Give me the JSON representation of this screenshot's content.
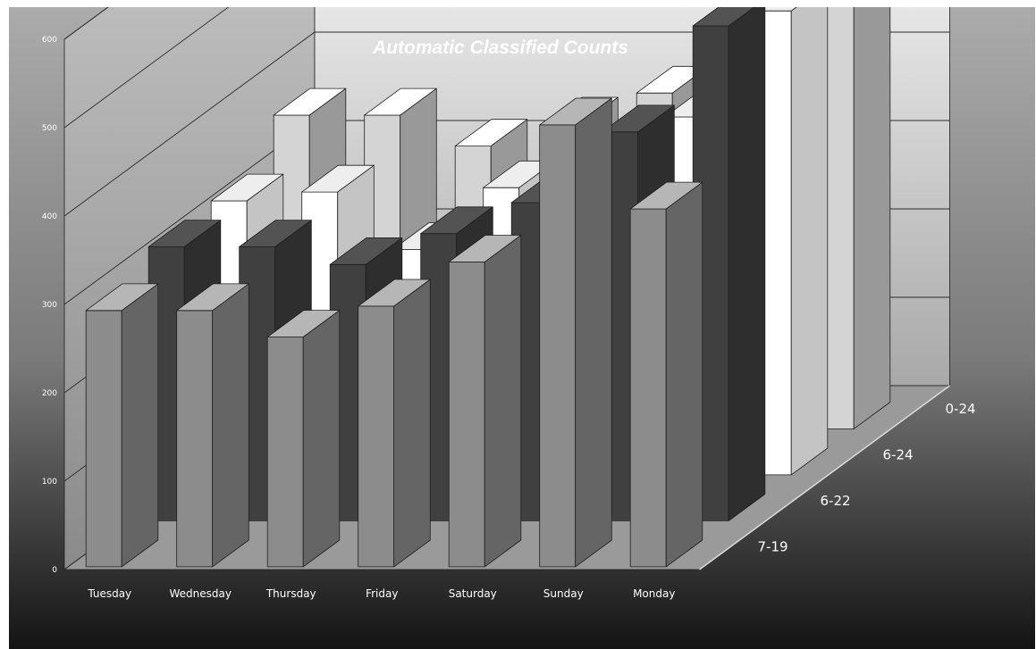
{
  "chart_data": {
    "type": "bar",
    "subtype": "3d-column",
    "title": "Automatic Classified Counts",
    "xlabel": "",
    "ylabel": "",
    "ylim": [
      0,
      600
    ],
    "yticks": [
      "0",
      "100",
      "200",
      "300",
      "400",
      "500",
      "600"
    ],
    "categories": [
      "Tuesday",
      "Wednesday",
      "Thursday",
      "Friday",
      "Saturday",
      "Sunday",
      "Monday"
    ],
    "series": [
      {
        "name": "7-19",
        "values": [
          290,
          290,
          260,
          295,
          345,
          500,
          405
        ]
      },
      {
        "name": "6-22",
        "values": [
          310,
          310,
          290,
          325,
          360,
          440,
          560
        ]
      },
      {
        "name": "6-24",
        "values": [
          310,
          320,
          255,
          325,
          330,
          405,
          525
        ]
      },
      {
        "name": "0-24",
        "values": [
          355,
          355,
          320,
          345,
          380,
          555,
          525
        ]
      }
    ],
    "series_colors": [
      "#8c8c8c",
      "#404040",
      "#ffffff",
      "#d4d4d4"
    ],
    "grid": true,
    "legend": "none"
  }
}
